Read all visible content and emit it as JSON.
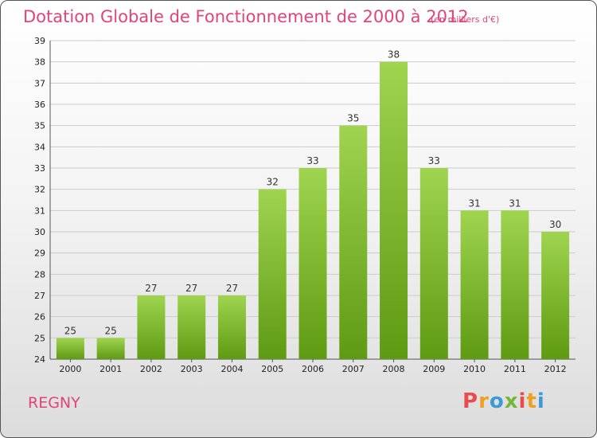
{
  "header": {
    "title": "Dotation Globale de Fonctionnement de 2000 à 2012",
    "subtitle": "(en milliers d'€)"
  },
  "footer": {
    "commune": "REGNY",
    "logo_text": "Proxiti"
  },
  "colors": {
    "title": "#e0447b",
    "bar_top": "#9fd44f",
    "bar_bottom": "#5e9a12",
    "grid": "#cccccc"
  },
  "chart_data": {
    "type": "bar",
    "categories": [
      "2000",
      "2001",
      "2002",
      "2003",
      "2004",
      "2005",
      "2006",
      "2007",
      "2008",
      "2009",
      "2010",
      "2011",
      "2012"
    ],
    "values": [
      25,
      25,
      27,
      27,
      27,
      32,
      33,
      35,
      38,
      33,
      31,
      31,
      30
    ],
    "title": "Dotation Globale de Fonctionnement de 2000 à 2012",
    "subtitle": "(en milliers d'€)",
    "xlabel": "",
    "ylabel": "",
    "ylim": [
      24,
      39
    ],
    "yticks": [
      24,
      25,
      26,
      27,
      28,
      29,
      30,
      31,
      32,
      33,
      34,
      35,
      36,
      37,
      38,
      39
    ],
    "grid": true,
    "legend": "none"
  }
}
